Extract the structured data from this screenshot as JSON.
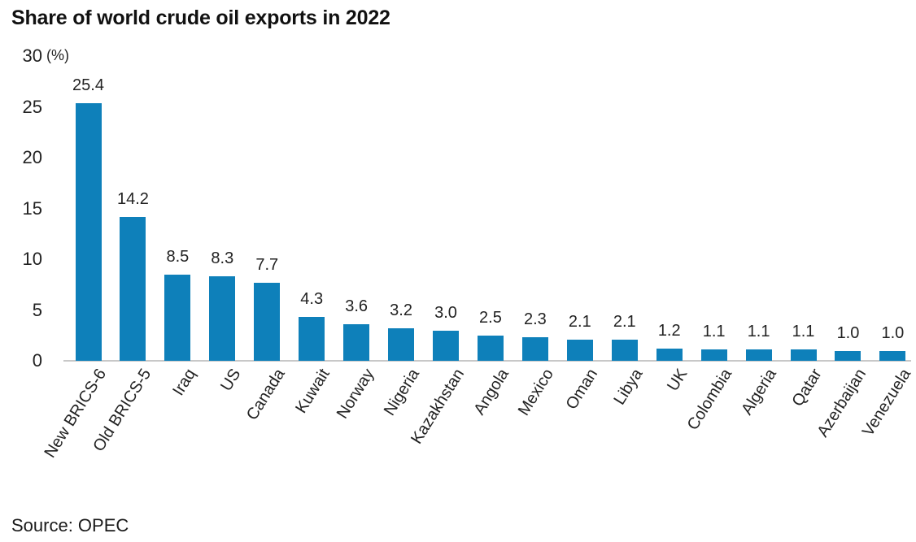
{
  "title": "Share of world crude oil exports in 2022",
  "source": "Source: OPEC",
  "chart_data": {
    "type": "bar",
    "title": "Share of world crude oil exports in 2022",
    "xlabel": "",
    "ylabel": "(%)",
    "unit_label": "(%)",
    "categories": [
      "New BRICS-6",
      "Old BRICS-5",
      "Iraq",
      "US",
      "Canada",
      "Kuwait",
      "Norway",
      "Nigeria",
      "Kazakhstan",
      "Angola",
      "Mexico",
      "Oman",
      "Libya",
      "UK",
      "Colombia",
      "Algeria",
      "Qatar",
      "Azerbaijan",
      "Venezuela"
    ],
    "values": [
      25.4,
      14.2,
      8.5,
      8.3,
      7.7,
      4.3,
      3.6,
      3.2,
      3.0,
      2.5,
      2.3,
      2.1,
      2.1,
      1.2,
      1.1,
      1.1,
      1.1,
      1.0,
      1.0
    ],
    "value_labels": [
      "25.4",
      "14.2",
      "8.5",
      "8.3",
      "7.7",
      "4.3",
      "3.6",
      "3.2",
      "3.0",
      "2.5",
      "2.3",
      "2.1",
      "2.1",
      "1.2",
      "1.1",
      "1.1",
      "1.1",
      "1.0",
      "1.0"
    ],
    "y_ticks": [
      0,
      5,
      10,
      15,
      20,
      25,
      30
    ],
    "ylim": [
      0,
      30
    ],
    "bar_color": "#0e80ba",
    "axis_line_color": "#c8c8c8",
    "grid": false,
    "legend": false,
    "source": "Source: OPEC"
  }
}
